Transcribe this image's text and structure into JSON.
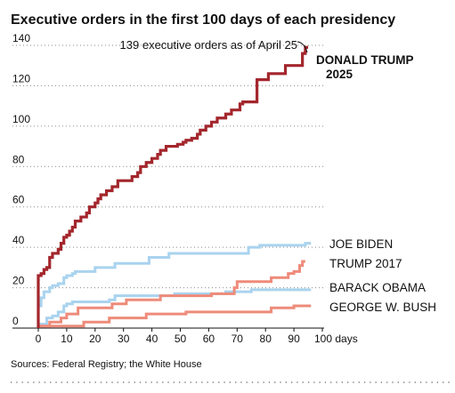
{
  "chart_data": {
    "type": "line",
    "title": "Executive orders in the first 100 days of each presidency",
    "xlim": [
      0,
      100
    ],
    "ylim": [
      0,
      140
    ],
    "x_ticks": [
      "0",
      "10",
      "20",
      "30",
      "40",
      "50",
      "60",
      "70",
      "80",
      "90",
      "100 days"
    ],
    "y_ticks": [
      "0",
      "20",
      "40",
      "60",
      "80",
      "100",
      "120",
      "140"
    ],
    "grid": "horizontal dotted",
    "annotation": "139 executive orders as of April 25",
    "source": "Sources: Federal Registry; the White House",
    "series": [
      {
        "name": "DONALD TRUMP 2025",
        "label_lines": [
          "DONALD TRUMP",
          "2025"
        ],
        "color": "#a3262c",
        "points": [
          [
            0,
            0
          ],
          [
            0,
            26
          ],
          [
            1,
            26
          ],
          [
            1,
            27
          ],
          [
            2,
            27
          ],
          [
            2,
            29
          ],
          [
            3,
            29
          ],
          [
            3,
            30
          ],
          [
            4,
            30
          ],
          [
            4,
            35
          ],
          [
            5,
            35
          ],
          [
            5,
            37
          ],
          [
            7,
            37
          ],
          [
            7,
            39
          ],
          [
            8,
            39
          ],
          [
            8,
            42
          ],
          [
            9,
            42
          ],
          [
            9,
            45
          ],
          [
            10,
            45
          ],
          [
            10,
            46
          ],
          [
            11,
            46
          ],
          [
            11,
            48
          ],
          [
            12,
            48
          ],
          [
            12,
            50
          ],
          [
            13,
            50
          ],
          [
            13,
            53
          ],
          [
            15,
            53
          ],
          [
            15,
            55
          ],
          [
            17,
            55
          ],
          [
            17,
            57
          ],
          [
            18,
            57
          ],
          [
            18,
            60
          ],
          [
            20,
            60
          ],
          [
            20,
            62
          ],
          [
            21,
            62
          ],
          [
            21,
            64
          ],
          [
            22,
            64
          ],
          [
            22,
            66
          ],
          [
            24,
            66
          ],
          [
            24,
            68
          ],
          [
            26,
            68
          ],
          [
            26,
            70
          ],
          [
            28,
            70
          ],
          [
            28,
            73
          ],
          [
            33,
            73
          ],
          [
            33,
            75
          ],
          [
            35,
            75
          ],
          [
            35,
            77
          ],
          [
            36,
            77
          ],
          [
            36,
            80
          ],
          [
            38,
            80
          ],
          [
            38,
            82
          ],
          [
            40,
            82
          ],
          [
            40,
            84
          ],
          [
            42,
            84
          ],
          [
            42,
            86
          ],
          [
            43,
            86
          ],
          [
            43,
            88
          ],
          [
            45,
            88
          ],
          [
            45,
            90
          ],
          [
            49,
            90
          ],
          [
            49,
            91
          ],
          [
            51,
            91
          ],
          [
            51,
            92
          ],
          [
            52,
            92
          ],
          [
            52,
            93
          ],
          [
            54,
            93
          ],
          [
            54,
            94
          ],
          [
            56,
            94
          ],
          [
            56,
            96
          ],
          [
            57,
            96
          ],
          [
            57,
            98
          ],
          [
            59,
            98
          ],
          [
            59,
            100
          ],
          [
            61,
            100
          ],
          [
            61,
            102
          ],
          [
            63,
            102
          ],
          [
            63,
            104
          ],
          [
            66,
            104
          ],
          [
            66,
            106
          ],
          [
            68,
            106
          ],
          [
            68,
            108
          ],
          [
            71,
            108
          ],
          [
            71,
            111
          ],
          [
            72,
            111
          ],
          [
            72,
            112
          ],
          [
            77,
            112
          ],
          [
            77,
            123
          ],
          [
            81,
            123
          ],
          [
            81,
            126
          ],
          [
            87,
            126
          ],
          [
            87,
            130
          ],
          [
            93,
            130
          ],
          [
            93,
            136
          ],
          [
            94,
            136
          ],
          [
            94,
            139
          ],
          [
            95,
            139
          ]
        ]
      },
      {
        "name": "JOE BIDEN",
        "color": "#a9d3ee",
        "points": [
          [
            0,
            0
          ],
          [
            0,
            11
          ],
          [
            1,
            11
          ],
          [
            1,
            15
          ],
          [
            2,
            15
          ],
          [
            2,
            18
          ],
          [
            4,
            18
          ],
          [
            4,
            20
          ],
          [
            5,
            20
          ],
          [
            5,
            21
          ],
          [
            7,
            21
          ],
          [
            7,
            22
          ],
          [
            9,
            22
          ],
          [
            9,
            25
          ],
          [
            10,
            25
          ],
          [
            10,
            26
          ],
          [
            12,
            26
          ],
          [
            12,
            27
          ],
          [
            13,
            27
          ],
          [
            13,
            28
          ],
          [
            20,
            28
          ],
          [
            20,
            30
          ],
          [
            27,
            30
          ],
          [
            27,
            32
          ],
          [
            39,
            32
          ],
          [
            39,
            35
          ],
          [
            46,
            35
          ],
          [
            46,
            37
          ],
          [
            74,
            37
          ],
          [
            74,
            40
          ],
          [
            78,
            40
          ],
          [
            78,
            41
          ],
          [
            94,
            41
          ],
          [
            94,
            42
          ],
          [
            96,
            42
          ]
        ]
      },
      {
        "name": "TRUMP 2017",
        "color": "#ee8b7a",
        "points": [
          [
            0,
            0
          ],
          [
            0,
            1
          ],
          [
            4,
            1
          ],
          [
            4,
            3
          ],
          [
            8,
            3
          ],
          [
            8,
            5
          ],
          [
            10,
            5
          ],
          [
            10,
            7
          ],
          [
            14,
            7
          ],
          [
            14,
            10
          ],
          [
            26,
            10
          ],
          [
            26,
            12
          ],
          [
            31,
            12
          ],
          [
            31,
            14
          ],
          [
            43,
            14
          ],
          [
            43,
            16
          ],
          [
            61,
            16
          ],
          [
            61,
            17
          ],
          [
            69,
            17
          ],
          [
            69,
            20
          ],
          [
            70,
            20
          ],
          [
            70,
            23
          ],
          [
            82,
            23
          ],
          [
            82,
            25
          ],
          [
            88,
            25
          ],
          [
            88,
            27
          ],
          [
            90,
            27
          ],
          [
            90,
            28
          ],
          [
            92,
            28
          ],
          [
            92,
            31
          ],
          [
            93,
            31
          ],
          [
            93,
            33
          ],
          [
            94,
            33
          ]
        ]
      },
      {
        "name": "BARACK OBAMA",
        "color": "#a9d3ee",
        "points": [
          [
            0,
            0
          ],
          [
            0,
            2
          ],
          [
            3,
            2
          ],
          [
            3,
            5
          ],
          [
            5,
            5
          ],
          [
            5,
            6
          ],
          [
            7,
            6
          ],
          [
            7,
            8
          ],
          [
            9,
            8
          ],
          [
            9,
            11
          ],
          [
            10,
            11
          ],
          [
            10,
            12
          ],
          [
            12,
            12
          ],
          [
            12,
            13
          ],
          [
            25,
            13
          ],
          [
            25,
            14
          ],
          [
            27,
            14
          ],
          [
            27,
            16
          ],
          [
            48,
            16
          ],
          [
            48,
            17
          ],
          [
            66,
            17
          ],
          [
            66,
            18
          ],
          [
            75,
            18
          ],
          [
            75,
            19
          ],
          [
            96,
            19
          ]
        ]
      },
      {
        "name": "GEORGE W. BUSH",
        "color": "#ee8b7a",
        "points": [
          [
            0,
            0
          ],
          [
            0,
            1
          ],
          [
            16,
            1
          ],
          [
            16,
            3
          ],
          [
            25,
            3
          ],
          [
            25,
            5
          ],
          [
            38,
            5
          ],
          [
            38,
            7
          ],
          [
            52,
            7
          ],
          [
            52,
            8
          ],
          [
            82,
            8
          ],
          [
            82,
            10
          ],
          [
            90,
            10
          ],
          [
            90,
            11
          ],
          [
            96,
            11
          ]
        ]
      }
    ]
  }
}
